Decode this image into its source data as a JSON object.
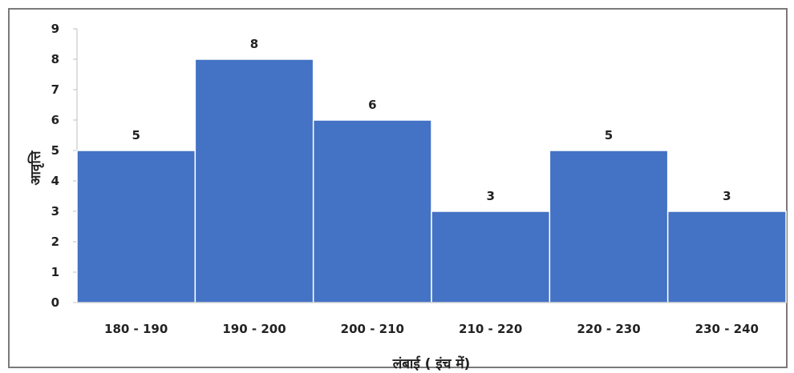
{
  "chart_data": {
    "type": "bar",
    "categories": [
      "180 - 190",
      "190 - 200",
      "200 - 210",
      "210 - 220",
      "220 - 230",
      "230 - 240"
    ],
    "values": [
      5,
      8,
      6,
      3,
      5,
      3
    ],
    "xlabel": "लंबाई ( इंच में)",
    "ylabel": "आवृत्ति",
    "ylim": [
      0,
      9
    ],
    "yticks": [
      0,
      1,
      2,
      3,
      4,
      5,
      6,
      7,
      8,
      9
    ],
    "data_labels": true,
    "grid": false,
    "bar_color": "#4472c4",
    "bar_edge_color": "#ffffff"
  }
}
